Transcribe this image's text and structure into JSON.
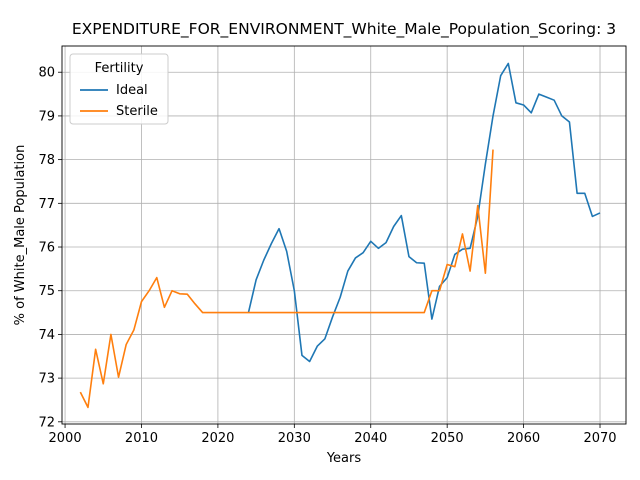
{
  "chart_data": {
    "type": "line",
    "title": "EXPENDITURE_FOR_ENVIRONMENT_White_Male_Population_Scoring: 3",
    "xlabel": "Years",
    "ylabel": "% of White_Male Population",
    "xlim": [
      1999.6,
      2073.4
    ],
    "ylim": [
      71.95,
      80.6
    ],
    "x_ticks": [
      2000,
      2010,
      2020,
      2030,
      2040,
      2050,
      2060,
      2070
    ],
    "y_ticks": [
      72,
      73,
      74,
      75,
      76,
      77,
      78,
      79,
      80
    ],
    "grid": true,
    "legend": {
      "title": "Fertility",
      "placement": "upper-left"
    },
    "series": [
      {
        "name": "Ideal",
        "color": "#1f77b4",
        "x": [
          2024,
          2025,
          2026,
          2027,
          2028,
          2029,
          2030,
          2031,
          2032,
          2033,
          2034,
          2035,
          2036,
          2037,
          2038,
          2039,
          2040,
          2041,
          2042,
          2043,
          2044,
          2045,
          2046,
          2047,
          2048,
          2049,
          2050,
          2051,
          2052,
          2053,
          2054,
          2055,
          2056,
          2057,
          2058,
          2059,
          2060,
          2061,
          2062,
          2063,
          2064,
          2065,
          2066,
          2067,
          2068,
          2069,
          2070
        ],
        "y": [
          74.5,
          75.25,
          75.7,
          76.08,
          76.42,
          75.9,
          75.0,
          73.52,
          73.38,
          73.73,
          73.9,
          74.4,
          74.85,
          75.45,
          75.75,
          75.87,
          76.13,
          75.97,
          76.1,
          76.47,
          76.72,
          75.78,
          75.64,
          75.63,
          74.35,
          75.1,
          75.3,
          75.83,
          75.95,
          75.97,
          76.7,
          77.9,
          79.0,
          79.92,
          80.2,
          79.3,
          79.25,
          79.07,
          79.5,
          79.43,
          79.36,
          79.0,
          78.86,
          77.23,
          77.23,
          76.7,
          76.78
        ]
      },
      {
        "name": "Sterile",
        "color": "#ff7f0e",
        "x": [
          2002,
          2003,
          2004,
          2005,
          2006,
          2007,
          2008,
          2009,
          2010,
          2011,
          2012,
          2013,
          2014,
          2015,
          2016,
          2017,
          2018,
          2019,
          2020,
          2021,
          2022,
          2023,
          2024,
          2025,
          2026,
          2027,
          2028,
          2029,
          2030,
          2031,
          2032,
          2033,
          2034,
          2035,
          2036,
          2037,
          2038,
          2039,
          2040,
          2041,
          2042,
          2043,
          2044,
          2045,
          2046,
          2047,
          2048,
          2049,
          2050,
          2051,
          2052,
          2053,
          2054,
          2055,
          2056
        ],
        "y": [
          72.68,
          72.33,
          73.66,
          72.87,
          74.0,
          73.02,
          73.77,
          74.1,
          74.75,
          75.0,
          75.3,
          74.62,
          75.0,
          74.93,
          74.92,
          74.7,
          74.5,
          74.5,
          74.5,
          74.5,
          74.5,
          74.5,
          74.5,
          74.5,
          74.5,
          74.5,
          74.5,
          74.5,
          74.5,
          74.5,
          74.5,
          74.5,
          74.5,
          74.5,
          74.5,
          74.5,
          74.5,
          74.5,
          74.5,
          74.5,
          74.5,
          74.5,
          74.5,
          74.5,
          74.5,
          74.5,
          75.0,
          75.0,
          75.6,
          75.55,
          76.3,
          75.45,
          76.95,
          75.4,
          78.23
        ]
      }
    ]
  }
}
